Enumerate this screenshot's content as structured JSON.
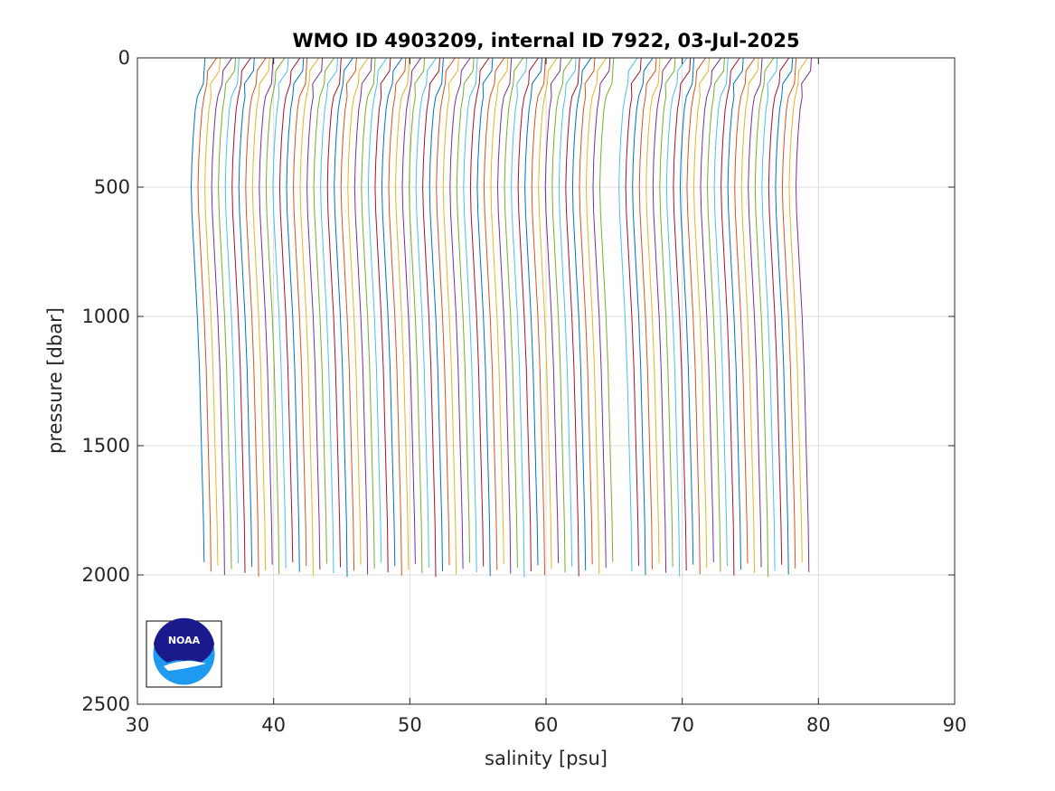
{
  "chart_data": {
    "type": "line",
    "title": "WMO ID 4903209, internal ID 7922, 03-Jul-2025",
    "xlabel": "salinity [psu]",
    "ylabel": "pressure [dbar]",
    "xlim": [
      30,
      90
    ],
    "ylim": [
      0,
      2500
    ],
    "y_reversed": true,
    "grid": true,
    "x_ticks": [
      "30",
      "40",
      "50",
      "60",
      "70",
      "80",
      "90"
    ],
    "y_ticks": [
      "0",
      "500",
      "1000",
      "1500",
      "2000",
      "2500"
    ],
    "profile_offset_psu": 0.5,
    "profile_groups": [
      {
        "first_surface_salinity": 35.2,
        "count": 61
      },
      {
        "first_surface_salinity": 66.6,
        "count": 27
      }
    ],
    "profile_shape": {
      "pressure": [
        0,
        50,
        100,
        150,
        200,
        300,
        400,
        500,
        600,
        700,
        800,
        1000,
        1200,
        1400,
        1600,
        1800,
        1950
      ],
      "salinity_anomaly": [
        0,
        -0.3,
        -0.6,
        -0.8,
        -0.95,
        -1.1,
        -1.2,
        -1.25,
        -1.2,
        -1.1,
        -1.0,
        -0.8,
        -0.65,
        -0.55,
        -0.45,
        -0.35,
        -0.3
      ]
    },
    "series_colors": [
      "#0072bd",
      "#d95319",
      "#edb120",
      "#7e2f8e",
      "#77ac30",
      "#4dbeee",
      "#a2142f"
    ]
  },
  "logo": {
    "text": "NOAA",
    "colors": {
      "dark": "#1a1a8c",
      "light": "#1e9af0"
    }
  }
}
